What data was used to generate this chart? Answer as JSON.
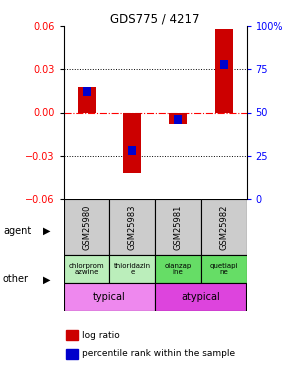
{
  "title": "GDS775 / 4217",
  "samples": [
    "GSM25980",
    "GSM25983",
    "GSM25981",
    "GSM25982"
  ],
  "log_ratios": [
    0.018,
    -0.042,
    -0.008,
    0.058
  ],
  "percentile_ranks": [
    62,
    28,
    46,
    78
  ],
  "ylim_left": [
    -0.06,
    0.06
  ],
  "ylim_right": [
    0,
    100
  ],
  "yticks_left": [
    -0.06,
    -0.03,
    0.0,
    0.03,
    0.06
  ],
  "yticks_right": [
    0,
    25,
    50,
    75,
    100
  ],
  "agents": [
    "chlorprom\nazwine",
    "thioridazin\ne",
    "olanzap\nine",
    "quetiapi\nne"
  ],
  "agent_colors": [
    "#bbeebb",
    "#bbeebb",
    "#66dd66",
    "#66dd66"
  ],
  "gsm_bg_color": "#cccccc",
  "bar_color_red": "#cc0000",
  "bar_color_blue": "#0000cc",
  "typical_color": "#ee88ee",
  "atypical_color": "#dd44dd"
}
